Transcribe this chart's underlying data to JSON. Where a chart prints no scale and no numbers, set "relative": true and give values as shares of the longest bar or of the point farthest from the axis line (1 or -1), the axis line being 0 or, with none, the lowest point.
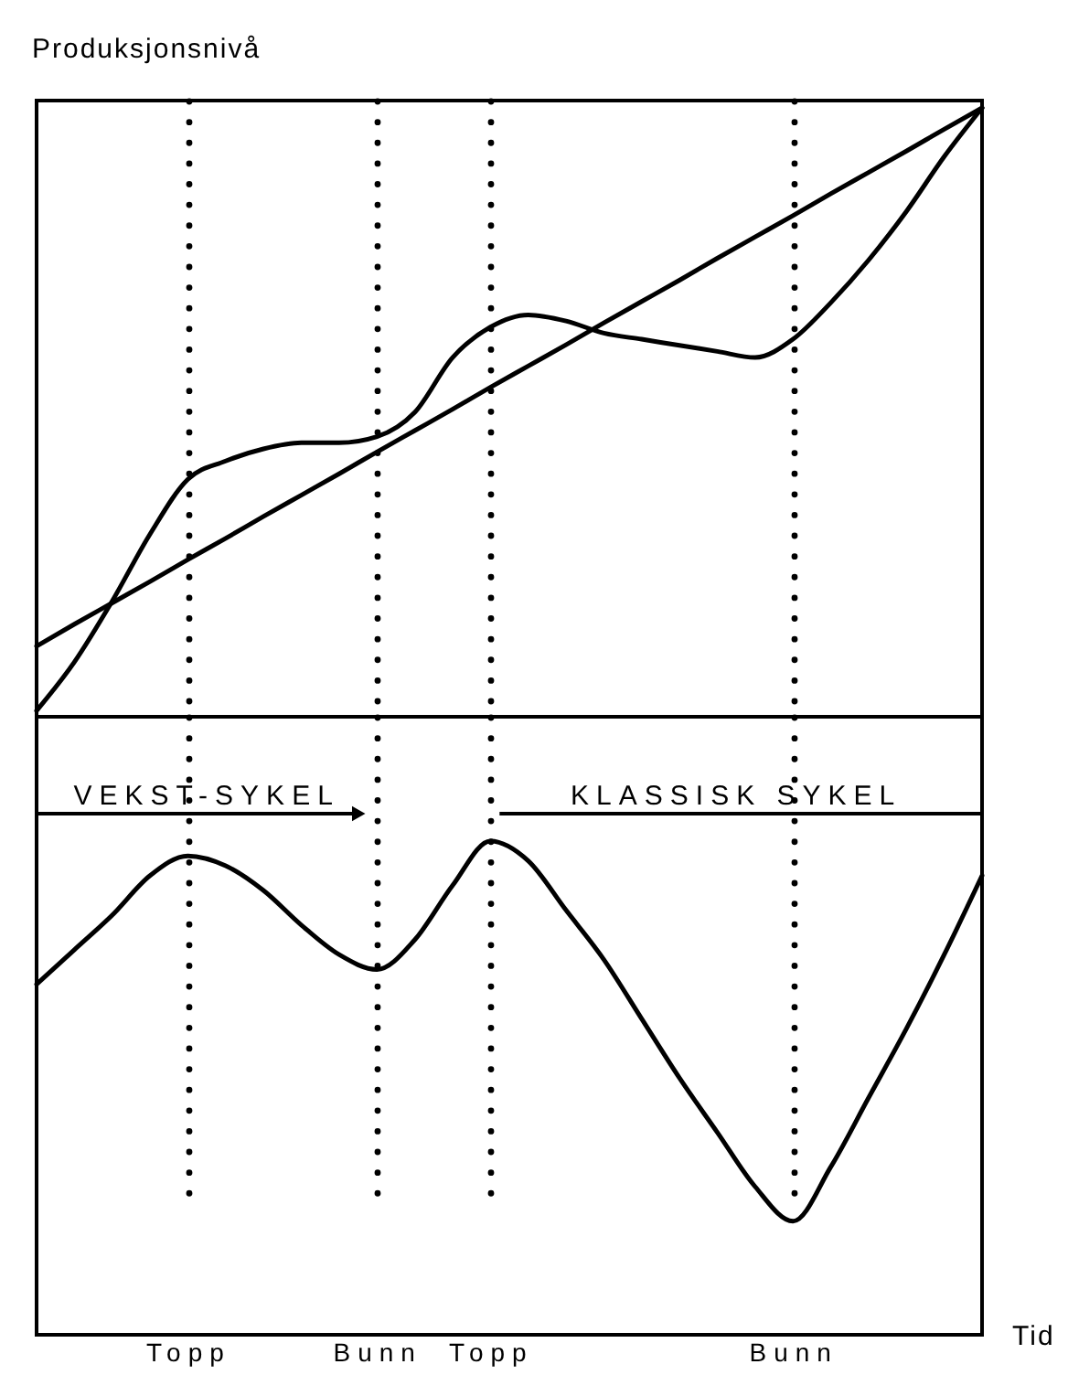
{
  "chart_data": [
    {
      "type": "line",
      "ylabel": "Produksjonsnivå",
      "relative": true,
      "grid": "x",
      "tick_labels": false,
      "categories": [
        null,
        null,
        null,
        null,
        null,
        null,
        null,
        null,
        null,
        null,
        null,
        null,
        null,
        null,
        null,
        null,
        null,
        null,
        null,
        null,
        null,
        null,
        null,
        null,
        null,
        null
      ],
      "series": [
        {
          "color": "#000000",
          "values": [
            0.116,
            0.152,
            0.187,
            0.222,
            0.258,
            0.293,
            0.329,
            0.364,
            0.399,
            0.435,
            0.47,
            0.505,
            0.541,
            0.576,
            0.611,
            0.647,
            0.682,
            0.717,
            0.753,
            0.788,
            0.823,
            0.859,
            0.894,
            0.929,
            0.965,
            1
          ]
        },
        {
          "color": "#000000",
          "values": [
            0.01,
            0.09,
            0.19,
            0.3,
            0.39,
            0.42,
            0.44,
            0.45,
            0.45,
            0.46,
            0.5,
            0.59,
            0.64,
            0.66,
            0.65,
            0.63,
            0.62,
            0.61,
            0.6,
            0.59,
            0.62,
            0.68,
            0.75,
            0.83,
            0.92,
            1
          ]
        }
      ]
    },
    {
      "type": "line",
      "xlabel": "Tid",
      "relative": true,
      "grid": "x",
      "tick_labels": "x",
      "annotations": [
        "VEKST-SYKEL",
        "KLASSISK SYKEL"
      ],
      "categories": [
        null,
        null,
        null,
        null,
        "Topp",
        null,
        null,
        null,
        null,
        "Bunn",
        null,
        null,
        "Topp",
        null,
        null,
        null,
        null,
        null,
        null,
        null,
        "Bunn",
        null,
        null,
        null,
        null,
        null
      ],
      "series": [
        {
          "color": "#000000",
          "values": [
            0.71,
            0.78,
            0.85,
            0.93,
            0.97,
            0.95,
            0.9,
            0.83,
            0.77,
            0.74,
            0.8,
            0.91,
            1,
            0.96,
            0.86,
            0.76,
            0.64,
            0.52,
            0.41,
            0.3,
            0.23,
            0.34,
            0.48,
            0.62,
            0.77,
            0.93
          ]
        }
      ]
    }
  ]
}
